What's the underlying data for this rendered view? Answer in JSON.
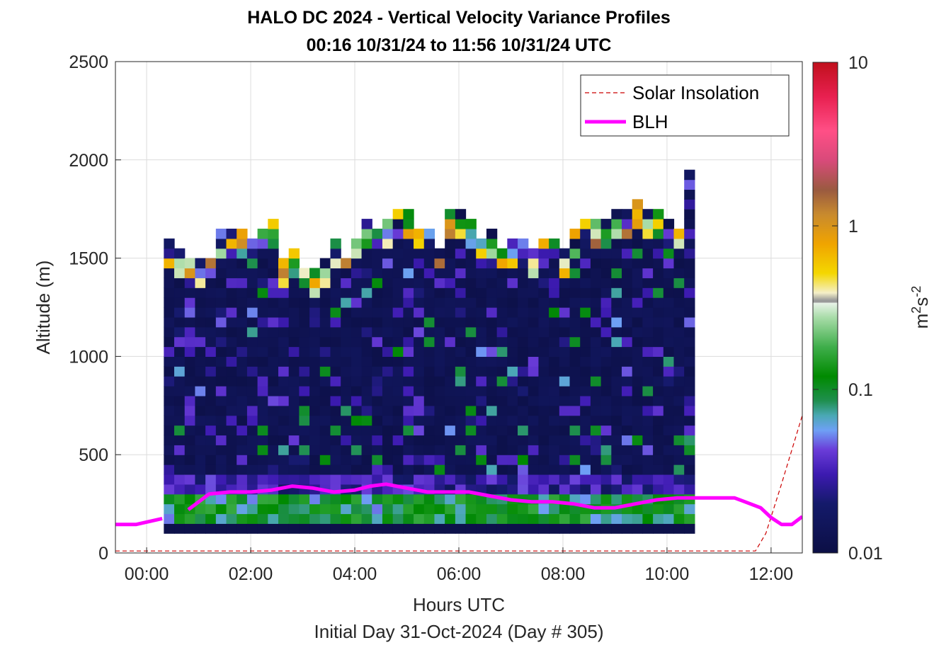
{
  "title_line1": "HALO DC 2024 - Vertical Velocity Variance Profiles",
  "title_line2": "00:16 10/31/24 to 11:56 10/31/24  UTC",
  "xlabel": "Hours UTC",
  "ylabel": "Altitude (m)",
  "subtitle_below": "Initial Day 31-Oct-2024 (Day # 305)",
  "colorbar_label": "m^2 s^-2",
  "chart_data": {
    "type": "heatmap",
    "xlim": [
      -0.6,
      12.6
    ],
    "ylim": [
      0,
      2500
    ],
    "x_ticks": [
      0,
      2,
      4,
      6,
      8,
      10,
      12
    ],
    "x_tick_labels": [
      "00:00",
      "02:00",
      "04:00",
      "06:00",
      "08:00",
      "10:00",
      "12:00"
    ],
    "y_ticks": [
      0,
      500,
      1000,
      1500,
      2000,
      2500
    ],
    "y_tick_labels": [
      "0",
      "500",
      "1000",
      "1500",
      "2000",
      "2500"
    ],
    "grid": true,
    "legend_placement": "top-right",
    "legend": [
      "Solar Insolation",
      "BLH"
    ],
    "colorbar": {
      "scale": "log",
      "range": [
        0.01,
        10
      ],
      "ticks": [
        0.01,
        0.1,
        1,
        10
      ],
      "tick_labels": [
        "0.01",
        "0.1",
        "1",
        "10"
      ]
    },
    "time_bin_hours": 0.2,
    "time_start_hours": 0.33,
    "altitude_bin_m": 50,
    "altitude_start_m": 100,
    "profiles_description": "Background variance ~0.012 m2s-2 from 100 to ~1550 m; enhanced variance (0.05-0.15) in lowest ~250 m; scattered higher values aloft",
    "columns_top_m": [
      1600,
      1550,
      1500,
      1500,
      1500,
      1650,
      1650,
      1650,
      1600,
      1650,
      1700,
      1500,
      1550,
      1450,
      1450,
      1500,
      1600,
      1550,
      1650,
      1700,
      1700,
      1700,
      1750,
      1750,
      1700,
      1700,
      1600,
      1750,
      1750,
      1700,
      1650,
      1650,
      1600,
      1600,
      1600,
      1550,
      1600,
      1600,
      1550,
      1650,
      1700,
      1700,
      1700,
      1750,
      1750,
      1800,
      1750,
      1750,
      1700,
      1700,
      1950
    ],
    "blh": {
      "name": "BLH",
      "x": [
        -0.6,
        -0.2,
        0.3,
        0.5,
        0.8,
        1.2,
        1.6,
        2.0,
        2.4,
        2.8,
        3.2,
        3.6,
        4.0,
        4.3,
        4.6,
        5.0,
        5.4,
        5.8,
        6.2,
        6.6,
        7.0,
        7.4,
        7.8,
        8.2,
        8.6,
        9.0,
        9.4,
        9.8,
        10.2,
        10.6,
        11.0,
        11.3,
        11.5,
        11.8,
        12.0,
        12.2,
        12.4,
        12.6
      ],
      "y": [
        145,
        145,
        175,
        null,
        220,
        300,
        310,
        310,
        320,
        340,
        330,
        310,
        320,
        340,
        350,
        330,
        310,
        310,
        310,
        290,
        270,
        260,
        260,
        250,
        230,
        230,
        250,
        270,
        280,
        280,
        280,
        280,
        260,
        230,
        180,
        145,
        145,
        185
      ]
    },
    "solar_insolation": {
      "name": "Solar Insolation",
      "x": [
        -0.6,
        11.7,
        11.9,
        12.2,
        12.6
      ],
      "y": [
        10,
        10,
        100,
        350,
        700
      ]
    }
  },
  "colors": {
    "blh": "#ff00ff",
    "solar": "#cc0000",
    "background_variance": "#0c0f45",
    "grid": "#dcdcdc",
    "axis": "#262626"
  }
}
